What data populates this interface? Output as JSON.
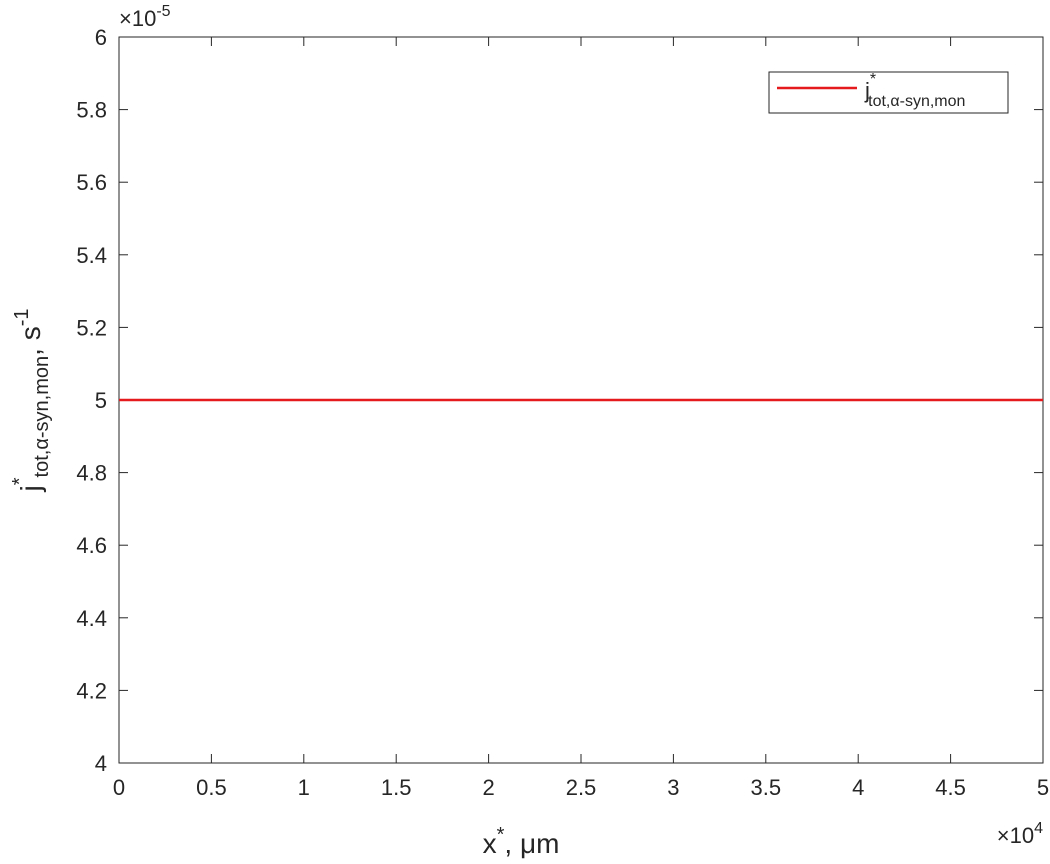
{
  "chart_data": {
    "type": "line",
    "x": [
      0,
      5
    ],
    "series": [
      {
        "name": "j",
        "name_sup": "*",
        "name_sub": "tot,α-syn,mon",
        "color": "#e41a1c",
        "values": [
          5,
          5
        ]
      }
    ],
    "xlim": [
      0,
      5
    ],
    "xticks": [
      0,
      0.5,
      1,
      1.5,
      2,
      2.5,
      3,
      3.5,
      4,
      4.5,
      5
    ],
    "ylim": [
      4,
      6
    ],
    "yticks": [
      4,
      4.2,
      4.4,
      4.6,
      4.8,
      5,
      5.2,
      5.4,
      5.6,
      5.8,
      6
    ],
    "x_multiplier": {
      "base": "×10",
      "exponent": "4"
    },
    "y_multiplier": {
      "base": "×10",
      "exponent": "-5"
    },
    "xlabel": {
      "base": "x",
      "sup": "*",
      "rest": ", μm"
    },
    "ylabel": {
      "base": "j",
      "sup": "*",
      "sub": "tot,α-syn,mon",
      "rest": ", s",
      "rest_sup": "-1"
    },
    "legend": "upper right",
    "grid": false
  }
}
